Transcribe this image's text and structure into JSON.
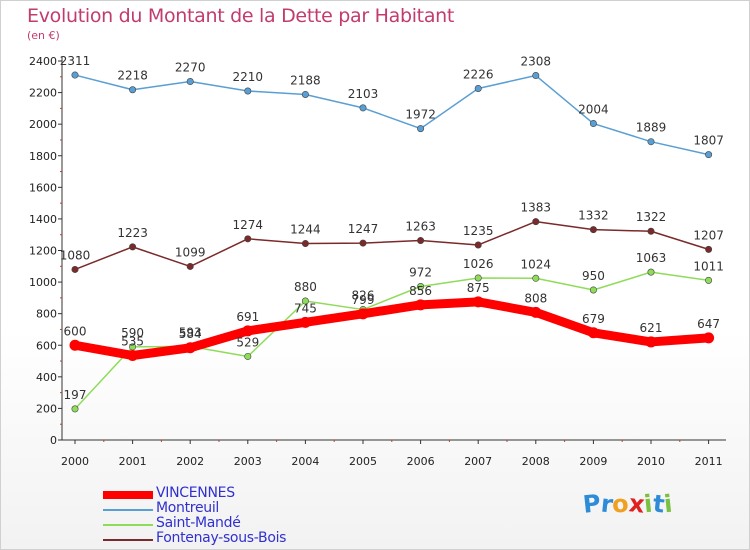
{
  "title": "Evolution du Montant de la Dette par Habitant",
  "subtitle": "(en €)",
  "chart_data": {
    "type": "line",
    "title": "Evolution du Montant de la Dette par Habitant",
    "ylabel": "(en €)",
    "xlabel": "",
    "categories": [
      "2000",
      "2001",
      "2002",
      "2003",
      "2004",
      "2005",
      "2006",
      "2007",
      "2008",
      "2009",
      "2010",
      "2011"
    ],
    "ylim": [
      0,
      2400
    ],
    "yticks": [
      0,
      200,
      400,
      600,
      800,
      1000,
      1200,
      1400,
      1600,
      1800,
      2000,
      2200,
      2400
    ],
    "grid": false,
    "legend_position": "bottom-left",
    "series": [
      {
        "name": "VINCENNES",
        "color": "#ff0000",
        "emphasis": true,
        "values": [
          600,
          535,
          584,
          691,
          745,
          799,
          856,
          875,
          808,
          679,
          621,
          647
        ],
        "labels": [
          "600",
          "535",
          "584",
          "691",
          "745",
          "799",
          "856",
          "875",
          "808",
          "679",
          "621",
          "647"
        ]
      },
      {
        "name": "Montreuil",
        "color": "#5a9fd4",
        "values": [
          2311,
          2218,
          2270,
          2210,
          2188,
          2103,
          1972,
          2226,
          2308,
          2004,
          1889,
          1807
        ],
        "labels": [
          "2311",
          "2218",
          "2270",
          "2210",
          "2188",
          "2103",
          "1972",
          "2226",
          "2308",
          "2004",
          "1889",
          "1807"
        ]
      },
      {
        "name": "Saint-Mandé",
        "color": "#8fdc5a",
        "values": [
          197,
          590,
          593,
          529,
          880,
          826,
          972,
          1026,
          1024,
          950,
          1063,
          1011
        ],
        "labels": [
          "197",
          "590",
          "593",
          "529",
          "880",
          "826",
          "972",
          "1026",
          "1024",
          "950",
          "1063",
          "1011"
        ]
      },
      {
        "name": "Fontenay-sous-Bois",
        "color": "#7a2a2a",
        "values": [
          1080,
          1223,
          1099,
          1274,
          1244,
          1247,
          1263,
          1235,
          1383,
          1332,
          1322,
          1207
        ],
        "labels": [
          "1080",
          "1223",
          "1099",
          "1274",
          "1244",
          "1247",
          "1263",
          "1235",
          "1383",
          "1332",
          "1322",
          "1207"
        ]
      }
    ]
  },
  "logo": {
    "letters": [
      "P",
      "r",
      "o",
      "x",
      "i",
      "t",
      "i"
    ],
    "colors": [
      "#2e8bd8",
      "#2e8bd8",
      "#f0a020",
      "#e02020",
      "#7ac043",
      "#2e8bd8",
      "#7ac043"
    ]
  }
}
